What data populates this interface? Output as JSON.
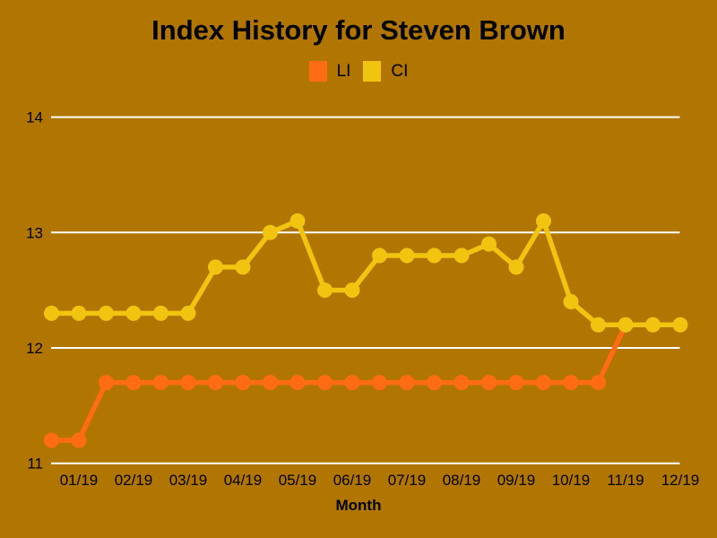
{
  "title": "Index History for Steven Brown",
  "colors": {
    "background": "#B17502",
    "li": "#FF6C14",
    "ci": "#F1C40F",
    "grid": "#FFFFFF",
    "text": "#000000"
  },
  "legend": [
    {
      "label": "LI",
      "color": "#FF6C14"
    },
    {
      "label": "CI",
      "color": "#F1C40F"
    }
  ],
  "x_axis_title": "Month",
  "chart_data": {
    "type": "line",
    "title": "Index History for Steven Brown",
    "xlabel": "Month",
    "ylabel": "",
    "grid": "horizontal",
    "legend_position": "top-center",
    "y_ticks": [
      11,
      12,
      13,
      14
    ],
    "ylim": [
      10.9,
      14.1
    ],
    "x_tick_labels": [
      "01/19",
      "02/19",
      "03/19",
      "04/19",
      "05/19",
      "06/19",
      "07/19",
      "08/19",
      "09/19",
      "10/19",
      "11/19",
      "12/19"
    ],
    "points_per_label": 2,
    "series": [
      {
        "name": "LI",
        "color": "#FF6C14",
        "values": [
          11.2,
          11.2,
          11.7,
          11.7,
          11.7,
          11.7,
          11.7,
          11.7,
          11.7,
          11.7,
          11.7,
          11.7,
          11.7,
          11.7,
          11.7,
          11.7,
          11.7,
          11.7,
          11.7,
          11.7,
          11.7,
          12.2,
          12.2,
          12.2
        ]
      },
      {
        "name": "CI",
        "color": "#F1C40F",
        "values": [
          12.3,
          12.3,
          12.3,
          12.3,
          12.3,
          12.3,
          12.7,
          12.7,
          13.0,
          13.1,
          12.5,
          12.5,
          12.8,
          12.8,
          12.8,
          12.8,
          12.9,
          12.7,
          13.1,
          12.4,
          12.2,
          12.2,
          12.2,
          12.2
        ]
      }
    ]
  }
}
